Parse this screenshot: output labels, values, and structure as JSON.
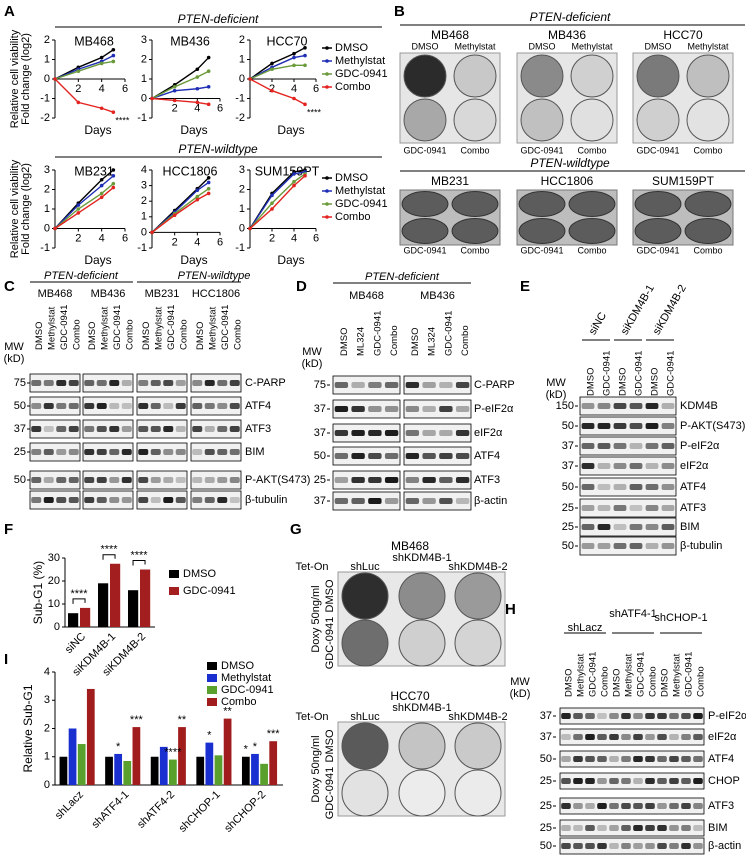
{
  "panel_letters": [
    "A",
    "B",
    "C",
    "D",
    "E",
    "F",
    "G",
    "H",
    "I"
  ],
  "panel_a": {
    "headers": [
      "PTEN-deficient",
      "PTEN-wildtype"
    ]
  },
  "chart_data": [
    {
      "type": "line",
      "title": "MB468",
      "title_color": "#e3231f",
      "ylabel": [
        "Relative cell viability",
        "Fold change (log2)"
      ],
      "xlabel": "Days",
      "x": [
        0,
        2,
        4,
        5
      ],
      "xlim": [
        0,
        6
      ],
      "xticks": [
        2,
        4,
        6
      ],
      "ylim": [
        -2,
        2
      ],
      "yticks": [
        -2,
        -1,
        0,
        1,
        2
      ],
      "annotations": [
        "****"
      ],
      "series": [
        {
          "color": "#000000",
          "values": [
            0,
            0.6,
            1.1,
            1.5
          ]
        },
        {
          "color": "#1f2fb5",
          "values": [
            0,
            0.5,
            0.9,
            1.2
          ]
        },
        {
          "color": "#6b9a3a",
          "values": [
            0,
            0.4,
            0.8,
            0.9
          ]
        },
        {
          "color": "#e3231f",
          "values": [
            0,
            -1.2,
            -1.5,
            -1.7
          ]
        }
      ]
    },
    {
      "type": "line",
      "title": "MB436",
      "title_color": "#e3231f",
      "xlabel": "Days",
      "x": [
        0,
        2,
        4,
        5
      ],
      "xlim": [
        0,
        6
      ],
      "xticks": [
        2,
        4,
        6
      ],
      "ylim": [
        -1,
        3
      ],
      "yticks": [
        -1,
        0,
        1,
        2,
        3
      ],
      "series": [
        {
          "color": "#000000",
          "values": [
            0,
            0.7,
            1.5,
            2.1
          ]
        },
        {
          "color": "#1f2fb5",
          "values": [
            0,
            0.4,
            0.5,
            0.6
          ]
        },
        {
          "color": "#6b9a3a",
          "values": [
            0,
            0.6,
            1.1,
            1.4
          ]
        },
        {
          "color": "#e3231f",
          "values": [
            0,
            -0.1,
            -0.2,
            -0.3
          ]
        }
      ]
    },
    {
      "type": "line",
      "title": "HCC70",
      "title_color": "#e3231f",
      "xlabel": "Days",
      "x": [
        0,
        2,
        4,
        5
      ],
      "xlim": [
        0,
        6
      ],
      "xticks": [
        2,
        4,
        6
      ],
      "ylim": [
        -2,
        2
      ],
      "yticks": [
        -2,
        -1,
        0,
        1,
        2
      ],
      "annotations": [
        "****"
      ],
      "series": [
        {
          "name": "DMSO",
          "color": "#000000",
          "values": [
            0,
            0.8,
            1.3,
            1.6
          ]
        },
        {
          "name": "Methylstat",
          "color": "#1f2fb5",
          "values": [
            0,
            0.6,
            1.1,
            1.2
          ]
        },
        {
          "name": "GDC-0941",
          "color": "#6b9a3a",
          "values": [
            0,
            0.5,
            0.7,
            0.7
          ]
        },
        {
          "name": "Combo",
          "color": "#e3231f",
          "values": [
            0,
            -0.6,
            -1.0,
            -1.3
          ]
        }
      ]
    },
    {
      "type": "line",
      "title": "MB231",
      "title_color": "#3b3bb3",
      "ylabel": [
        "Relative cell viability",
        "Fold change (log2)"
      ],
      "xlabel": "Days",
      "x": [
        0,
        2,
        4,
        5
      ],
      "xlim": [
        0,
        6
      ],
      "xticks": [
        2,
        4,
        6
      ],
      "ylim": [
        -1,
        3
      ],
      "yticks": [
        -1,
        0,
        1,
        2,
        3
      ],
      "series": [
        {
          "color": "#000000",
          "values": [
            0,
            1.3,
            2.5,
            3
          ]
        },
        {
          "color": "#1f2fb5",
          "values": [
            0,
            1.2,
            2.2,
            2.7
          ]
        },
        {
          "color": "#6b9a3a",
          "values": [
            0,
            1.0,
            1.8,
            2.3
          ]
        },
        {
          "color": "#e3231f",
          "values": [
            0,
            0.8,
            1.6,
            2.1
          ]
        }
      ]
    },
    {
      "type": "line",
      "title": "HCC1806",
      "title_color": "#3b3bb3",
      "xlabel": "Days",
      "x": [
        0,
        2,
        4,
        5
      ],
      "xlim": [
        0,
        6
      ],
      "xticks": [
        2,
        4,
        6
      ],
      "ylim": [
        -1,
        4
      ],
      "yticks": [
        -1,
        0,
        1,
        2,
        3,
        4
      ],
      "series": [
        {
          "color": "#000000",
          "values": [
            0,
            1.4,
            2.8,
            3.5
          ]
        },
        {
          "color": "#1f2fb5",
          "values": [
            0,
            1.3,
            2.7,
            3.2
          ]
        },
        {
          "color": "#6b9a3a",
          "values": [
            0,
            1.2,
            2.3,
            2.8
          ]
        },
        {
          "color": "#e3231f",
          "values": [
            0,
            1.1,
            2.1,
            2.5
          ]
        }
      ]
    },
    {
      "type": "line",
      "title": "SUM159PT",
      "title_color": "#3b3bb3",
      "xlabel": "Days",
      "x": [
        0,
        2,
        4,
        5
      ],
      "xlim": [
        0,
        6
      ],
      "xticks": [
        2,
        4,
        6
      ],
      "ylim": [
        -1,
        3
      ],
      "yticks": [
        -1,
        0,
        1,
        2,
        3
      ],
      "series": [
        {
          "name": "DMSO",
          "color": "#000000",
          "values": [
            0,
            1.8,
            2.9,
            3
          ]
        },
        {
          "name": "Methylstat",
          "color": "#1f2fb5",
          "values": [
            0,
            1.7,
            2.8,
            2.9
          ]
        },
        {
          "name": "GDC-0941",
          "color": "#6b9a3a",
          "values": [
            0,
            1.3,
            2.4,
            2.8
          ]
        },
        {
          "name": "Combo",
          "color": "#e3231f",
          "values": [
            0,
            1.0,
            2.2,
            2.7
          ]
        }
      ]
    },
    {
      "type": "bar",
      "ylabel": "Sub-G1 (%)",
      "categories": [
        "siNC",
        "siKDM4B-1",
        "siKDM4B-2"
      ],
      "legend": "right",
      "series": [
        {
          "name": "DMSO",
          "color": "#000000",
          "values": [
            6,
            19,
            16
          ]
        },
        {
          "name": "GDC-0941",
          "color": "#a31f1f",
          "values": [
            8.3,
            27.5,
            25
          ]
        }
      ],
      "ylim": [
        0,
        30
      ],
      "yticks": [
        0,
        10,
        20,
        30
      ],
      "annotations": [
        "****",
        "****",
        "****"
      ]
    },
    {
      "type": "bar",
      "ylabel": "Relative Sub-G1",
      "categories": [
        "shLacz",
        "shATF4-1",
        "shATF4-2",
        "shCHOP-1",
        "shCHOP-2"
      ],
      "legend": "upper right",
      "series": [
        {
          "name": "DMSO",
          "color": "#000000",
          "values": [
            1,
            1,
            1,
            1,
            1
          ]
        },
        {
          "name": "Methylstat",
          "color": "#1a2fd0",
          "values": [
            2.0,
            1.1,
            1.35,
            1.5,
            1.1
          ]
        },
        {
          "name": "GDC-0941",
          "color": "#5aa02c",
          "values": [
            1.45,
            0.85,
            0.9,
            1.05,
            0.75
          ]
        },
        {
          "name": "Combo",
          "color": "#a11d1d",
          "values": [
            3.4,
            2.05,
            2.05,
            2.35,
            1.55
          ]
        }
      ],
      "ylim": [
        0,
        4
      ],
      "yticks": [
        0,
        1,
        2,
        3,
        4
      ],
      "annotations": [
        "*",
        "***",
        "****",
        "**",
        "*",
        "**",
        "*",
        "*",
        "***"
      ]
    }
  ],
  "panel_b": {
    "headers": [
      "PTEN-deficient",
      "PTEN-wildtype"
    ],
    "deficient_lines": [
      "MB468",
      "MB436",
      "HCC70"
    ],
    "wildtype_lines": [
      "MB231",
      "HCC1806",
      "SUM159PT"
    ],
    "top_labels": [
      "DMSO",
      "Methylstat"
    ],
    "bottom_labels": [
      "GDC-0941",
      "Combo"
    ]
  },
  "panel_c": {
    "groups": [
      {
        "header": "PTEN-deficient",
        "lines": [
          "MB468",
          "MB436"
        ]
      },
      {
        "header": "PTEN-wildtype",
        "lines": [
          "MB231",
          "HCC1806"
        ]
      }
    ],
    "lanes": [
      "DMSO",
      "Methylstat",
      "GDC-0941",
      "Combo"
    ],
    "mw_label": [
      "MW",
      "(kD)"
    ],
    "rows": [
      {
        "mw": 75,
        "label": "C-PARP"
      },
      {
        "mw": 50,
        "label": "ATF4"
      },
      {
        "mw": 37,
        "label": "ATF3"
      },
      {
        "mw": 25,
        "label": "BIM"
      },
      {
        "mw": 50,
        "label": "P-AKT(S473)"
      },
      {
        "label": "β-tubulin"
      }
    ]
  },
  "panel_d": {
    "header": "PTEN-deficient",
    "lines": [
      "MB468",
      "MB436"
    ],
    "lanes": [
      "DMSO",
      "ML324",
      "GDC-0941",
      "Combo"
    ],
    "mw_label": [
      "MW",
      "(kD)"
    ],
    "rows": [
      {
        "mw": 75,
        "label": "C-PARP"
      },
      {
        "mw": 37,
        "label": "P-eIF2α"
      },
      {
        "mw": 37,
        "label": "eIF2α"
      },
      {
        "mw": 50,
        "label": "ATF4"
      },
      {
        "mw": 25,
        "label": "ATF3"
      },
      {
        "mw": 37,
        "label": "β-actin"
      }
    ]
  },
  "panel_e": {
    "groups": [
      "siNC",
      "siKDM4B-1",
      "siKDM4B-2"
    ],
    "lanes": [
      "DMSO",
      "GDC-0941"
    ],
    "mw_label": [
      "MW",
      "(kD)"
    ],
    "rows": [
      {
        "mw": 150,
        "label": "KDM4B"
      },
      {
        "mw": 50,
        "label": "P-AKT(S473)"
      },
      {
        "mw": 37,
        "label": "P-eIF2α"
      },
      {
        "mw": 37,
        "label": "eIF2α"
      },
      {
        "mw": 50,
        "label": "ATF4"
      },
      {
        "mw": 25,
        "label": "ATF3"
      },
      {
        "mw": 25,
        "label": "BIM"
      },
      {
        "mw": 50,
        "label": "β-tubulin"
      }
    ]
  },
  "panel_g": {
    "blocks": [
      {
        "title": "MB468",
        "tet_on": "Tet-On",
        "columns": [
          "shLuc",
          "shKDM4B-1",
          "shKDM4B-2"
        ],
        "doxy": "Doxy 50ng/ml",
        "rows": [
          "DMSO",
          "GDC-0941"
        ]
      },
      {
        "title": "HCC70",
        "tet_on": "Tet-On",
        "columns": [
          "shLuc",
          "shKDM4B-1",
          "shKDM4B-2"
        ],
        "doxy": "Doxy 50ng/ml",
        "rows": [
          "DMSO",
          "GDC-0941"
        ]
      }
    ]
  },
  "panel_h": {
    "groups": [
      "shLacz",
      "shATF4-1",
      "shCHOP-1"
    ],
    "lanes": [
      "DMSO",
      "Methylstat",
      "GDC-0941",
      "Combo"
    ],
    "mw_label": [
      "MW",
      "(kD)"
    ],
    "rows": [
      {
        "mw": 37,
        "label": "P-eIF2α"
      },
      {
        "mw": 37,
        "label": "eIF2α"
      },
      {
        "mw": 50,
        "label": "ATF4"
      },
      {
        "mw": 25,
        "label": "CHOP"
      },
      {
        "mw": 25,
        "label": "ATF3"
      },
      {
        "mw": 25,
        "label": "BIM"
      },
      {
        "mw": 50,
        "label": "β-actin"
      }
    ]
  }
}
